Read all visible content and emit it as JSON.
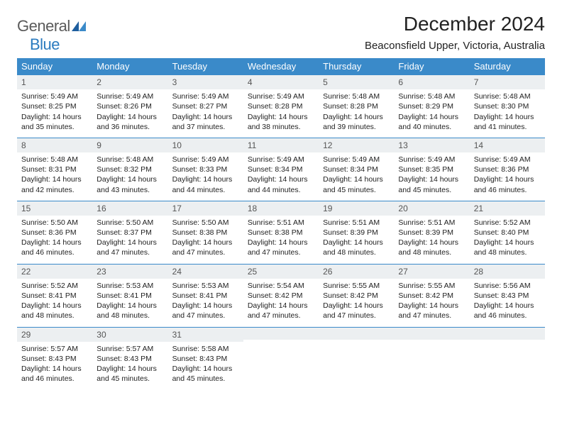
{
  "brand": {
    "name_gray": "General",
    "name_blue": "Blue"
  },
  "colors": {
    "header_bg": "#3a8ac9",
    "header_fg": "#ffffff",
    "daynum_bg": "#eceff1",
    "border_top": "#3a8ac9",
    "logo_gray": "#5a5a5a",
    "logo_blue": "#2b7bbf"
  },
  "title": "December 2024",
  "location": "Beaconsfield Upper, Victoria, Australia",
  "weekdays": [
    "Sunday",
    "Monday",
    "Tuesday",
    "Wednesday",
    "Thursday",
    "Friday",
    "Saturday"
  ],
  "weeks": [
    [
      {
        "n": "1",
        "sr": "5:49 AM",
        "ss": "8:25 PM",
        "dl": "14 hours and 35 minutes."
      },
      {
        "n": "2",
        "sr": "5:49 AM",
        "ss": "8:26 PM",
        "dl": "14 hours and 36 minutes."
      },
      {
        "n": "3",
        "sr": "5:49 AM",
        "ss": "8:27 PM",
        "dl": "14 hours and 37 minutes."
      },
      {
        "n": "4",
        "sr": "5:49 AM",
        "ss": "8:28 PM",
        "dl": "14 hours and 38 minutes."
      },
      {
        "n": "5",
        "sr": "5:48 AM",
        "ss": "8:28 PM",
        "dl": "14 hours and 39 minutes."
      },
      {
        "n": "6",
        "sr": "5:48 AM",
        "ss": "8:29 PM",
        "dl": "14 hours and 40 minutes."
      },
      {
        "n": "7",
        "sr": "5:48 AM",
        "ss": "8:30 PM",
        "dl": "14 hours and 41 minutes."
      }
    ],
    [
      {
        "n": "8",
        "sr": "5:48 AM",
        "ss": "8:31 PM",
        "dl": "14 hours and 42 minutes."
      },
      {
        "n": "9",
        "sr": "5:48 AM",
        "ss": "8:32 PM",
        "dl": "14 hours and 43 minutes."
      },
      {
        "n": "10",
        "sr": "5:49 AM",
        "ss": "8:33 PM",
        "dl": "14 hours and 44 minutes."
      },
      {
        "n": "11",
        "sr": "5:49 AM",
        "ss": "8:34 PM",
        "dl": "14 hours and 44 minutes."
      },
      {
        "n": "12",
        "sr": "5:49 AM",
        "ss": "8:34 PM",
        "dl": "14 hours and 45 minutes."
      },
      {
        "n": "13",
        "sr": "5:49 AM",
        "ss": "8:35 PM",
        "dl": "14 hours and 45 minutes."
      },
      {
        "n": "14",
        "sr": "5:49 AM",
        "ss": "8:36 PM",
        "dl": "14 hours and 46 minutes."
      }
    ],
    [
      {
        "n": "15",
        "sr": "5:50 AM",
        "ss": "8:36 PM",
        "dl": "14 hours and 46 minutes."
      },
      {
        "n": "16",
        "sr": "5:50 AM",
        "ss": "8:37 PM",
        "dl": "14 hours and 47 minutes."
      },
      {
        "n": "17",
        "sr": "5:50 AM",
        "ss": "8:38 PM",
        "dl": "14 hours and 47 minutes."
      },
      {
        "n": "18",
        "sr": "5:51 AM",
        "ss": "8:38 PM",
        "dl": "14 hours and 47 minutes."
      },
      {
        "n": "19",
        "sr": "5:51 AM",
        "ss": "8:39 PM",
        "dl": "14 hours and 48 minutes."
      },
      {
        "n": "20",
        "sr": "5:51 AM",
        "ss": "8:39 PM",
        "dl": "14 hours and 48 minutes."
      },
      {
        "n": "21",
        "sr": "5:52 AM",
        "ss": "8:40 PM",
        "dl": "14 hours and 48 minutes."
      }
    ],
    [
      {
        "n": "22",
        "sr": "5:52 AM",
        "ss": "8:41 PM",
        "dl": "14 hours and 48 minutes."
      },
      {
        "n": "23",
        "sr": "5:53 AM",
        "ss": "8:41 PM",
        "dl": "14 hours and 48 minutes."
      },
      {
        "n": "24",
        "sr": "5:53 AM",
        "ss": "8:41 PM",
        "dl": "14 hours and 47 minutes."
      },
      {
        "n": "25",
        "sr": "5:54 AM",
        "ss": "8:42 PM",
        "dl": "14 hours and 47 minutes."
      },
      {
        "n": "26",
        "sr": "5:55 AM",
        "ss": "8:42 PM",
        "dl": "14 hours and 47 minutes."
      },
      {
        "n": "27",
        "sr": "5:55 AM",
        "ss": "8:42 PM",
        "dl": "14 hours and 47 minutes."
      },
      {
        "n": "28",
        "sr": "5:56 AM",
        "ss": "8:43 PM",
        "dl": "14 hours and 46 minutes."
      }
    ],
    [
      {
        "n": "29",
        "sr": "5:57 AM",
        "ss": "8:43 PM",
        "dl": "14 hours and 46 minutes."
      },
      {
        "n": "30",
        "sr": "5:57 AM",
        "ss": "8:43 PM",
        "dl": "14 hours and 45 minutes."
      },
      {
        "n": "31",
        "sr": "5:58 AM",
        "ss": "8:43 PM",
        "dl": "14 hours and 45 minutes."
      },
      null,
      null,
      null,
      null
    ]
  ],
  "labels": {
    "sunrise": "Sunrise:",
    "sunset": "Sunset:",
    "daylight": "Daylight:"
  }
}
